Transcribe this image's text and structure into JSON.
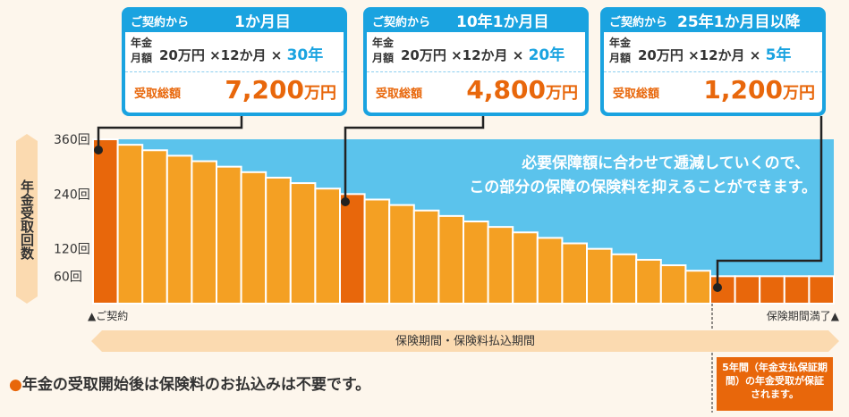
{
  "cards": [
    {
      "from": "ご契約から",
      "period": "1か月目",
      "label": "年金月額",
      "formula": "20万円 ×12か月 ×",
      "years": "30年",
      "total_label": "受取総額",
      "total_value": "7,200",
      "total_unit": "万円"
    },
    {
      "from": "ご契約から",
      "period": "10年1か月目",
      "label": "年金月額",
      "formula": "20万円 ×12か月 ×",
      "years": "20年",
      "total_label": "受取総額",
      "total_value": "4,800",
      "total_unit": "万円"
    },
    {
      "from": "ご契約から",
      "period": "25年1か月目以降",
      "label": "年金月額",
      "formula": "20万円 ×12か月 ×",
      "years": "5年",
      "total_label": "受取総額",
      "total_value": "1,200",
      "total_unit": "万円"
    }
  ],
  "note": {
    "bullet": "●",
    "text": "年金の受取開始後は保険料のお払込みは不要です。"
  },
  "guarantee_box": "5年間（年金支払保証期間）の年金受取が保証されます。",
  "chart_data": {
    "type": "bar",
    "ylabel": "年金受取回数",
    "yticks": [
      {
        "value": 360,
        "label": "360回"
      },
      {
        "value": 240,
        "label": "240回"
      },
      {
        "value": 120,
        "label": "120回"
      },
      {
        "value": 60,
        "label": "60回"
      }
    ],
    "ylim": [
      0,
      360
    ],
    "values": [
      360,
      348,
      336,
      324,
      312,
      300,
      288,
      276,
      264,
      252,
      240,
      228,
      216,
      204,
      192,
      180,
      168,
      156,
      144,
      132,
      120,
      108,
      96,
      84,
      72,
      60,
      60,
      60,
      60,
      60
    ],
    "highlight_indices": [
      0,
      10,
      25
    ],
    "annotation_lines": [
      "必要保障額に合わせて逓減していくので、",
      "この部分の保障の保険料を抑えることができます。"
    ],
    "x_start_label": "▲ご契約",
    "x_end_label": "保険期間満了▲",
    "period_label": "保険期間・保険料払込期間",
    "colors": {
      "bar": "#f4a023",
      "highlight": "#e8670b",
      "sky": "#5bc3ec",
      "card": "#1aa3e0",
      "accent": "#e8670b",
      "band": "#fbdab0"
    }
  }
}
